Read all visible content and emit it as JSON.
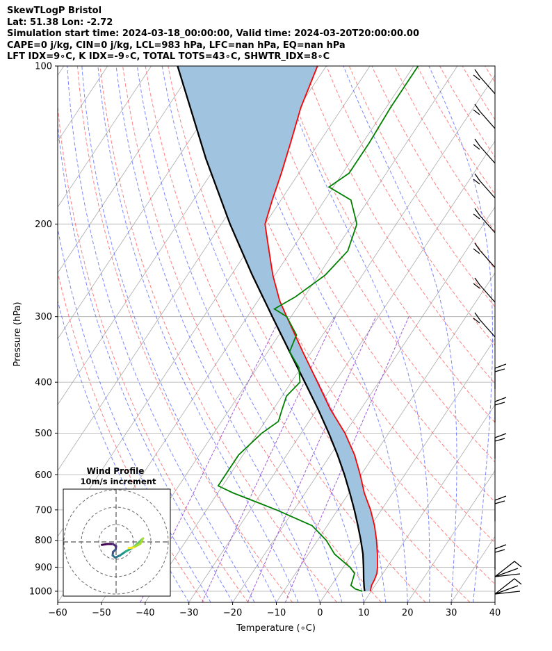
{
  "header": {
    "line1": "SkewTLogP Bristol",
    "line2": "Lat: 51.38   Lon: -2.72",
    "line3": "Simulation start time: 2024-03-18_00:00:00, Valid time: 2024-03-20T20:00:00.00",
    "line4": "CAPE=0 j/kg, CIN=0 j/kg, LCL=983 hPa, LFC=nan hPa, EQ=nan hPa",
    "line5": "LFT IDX=9∘C, K IDX=-9∘C, TOTAL TOTS=43∘C, SHWTR_IDX=8∘C"
  },
  "colors": {
    "temperature": "#ff0000",
    "dewpoint": "#008000",
    "parcel": "#000000",
    "cape_fill": "#a0c4e0",
    "dry_adiabat": "#ff5555",
    "moist_adiabat": "#4455ff",
    "mixing_ratio": "#8833cc",
    "isotherm": "#aaaaaa"
  },
  "chart_data": {
    "type": "line",
    "subtype": "skew-t log-p",
    "xlabel": "Temperature (∘C)",
    "ylabel": "Pressure (hPa)",
    "xlim": [
      -60,
      40
    ],
    "ylim": [
      1050,
      100
    ],
    "yscale": "log",
    "grid": true,
    "x_ticks": [
      "−60",
      "−50",
      "−40",
      "−30",
      "−20",
      "−10",
      "0",
      "10",
      "20",
      "30",
      "40"
    ],
    "x_tick_values": [
      -60,
      -50,
      -40,
      -30,
      -20,
      -10,
      0,
      10,
      20,
      30,
      40
    ],
    "y_ticks": [
      "100",
      "200",
      "300",
      "400",
      "500",
      "600",
      "700",
      "800",
      "900",
      "1000"
    ],
    "y_tick_values": [
      100,
      200,
      300,
      400,
      500,
      600,
      700,
      800,
      900,
      1000
    ],
    "series": [
      {
        "key": "temperature",
        "pressure": [
          1000,
          975,
          950,
          925,
          900,
          850,
          800,
          750,
          700,
          650,
          600,
          550,
          500,
          450,
          400,
          350,
          300,
          280,
          250,
          225,
          200,
          180,
          160,
          140,
          120,
          100
        ],
        "temp": [
          9.8,
          9.2,
          9.0,
          8.6,
          7.8,
          5.8,
          3.5,
          0.8,
          -2.5,
          -6.5,
          -10.2,
          -14.5,
          -20.0,
          -27.0,
          -34.0,
          -42.0,
          -51.0,
          -55.0,
          -60.5,
          -65.0,
          -70.0,
          -72.0,
          -74.0,
          -76.5,
          -79.5,
          -82.0
        ]
      },
      {
        "key": "dewpoint",
        "pressure": [
          1000,
          990,
          975,
          950,
          925,
          900,
          850,
          800,
          750,
          700,
          650,
          630,
          600,
          550,
          500,
          475,
          450,
          425,
          400,
          375,
          350,
          325,
          300,
          290,
          275,
          250,
          225,
          200,
          180,
          170,
          160,
          140,
          120,
          100
        ],
        "temp": [
          8.0,
          6.0,
          4.5,
          4.0,
          3.5,
          1.5,
          -4.0,
          -8.0,
          -13.5,
          -24.0,
          -36.5,
          -41.0,
          -41.0,
          -41.0,
          -39.0,
          -37.0,
          -38.0,
          -39.0,
          -38.0,
          -40.5,
          -45.0,
          -46.0,
          -51.0,
          -55.0,
          -52.0,
          -48.5,
          -47.0,
          -49.0,
          -54.0,
          -61.0,
          -58.5,
          -58.5,
          -59.0,
          -59.0
        ]
      },
      {
        "key": "parcel",
        "pressure": [
          1000,
          983,
          950,
          900,
          850,
          800,
          750,
          700,
          650,
          600,
          550,
          500,
          450,
          400,
          350,
          300,
          250,
          200,
          150,
          100
        ],
        "temp": [
          8.5,
          7.8,
          6.5,
          4.6,
          2.5,
          -0.1,
          -3.0,
          -6.2,
          -9.8,
          -13.8,
          -18.4,
          -23.7,
          -29.8,
          -36.9,
          -45.0,
          -54.3,
          -65.2,
          -78.0,
          -93.5,
          -114.0
        ]
      }
    ],
    "shaded_region": "between parcel and temperature",
    "hodograph": {
      "title": "Wind Profile",
      "subtitle": "10m/s increment",
      "rings": 3,
      "trace": [
        [
          -0.82,
          -0.17
        ],
        [
          -0.5,
          -0.12
        ],
        [
          -0.18,
          -0.12
        ],
        [
          0.0,
          -0.25
        ],
        [
          -0.02,
          -0.43
        ],
        [
          -0.18,
          -0.58
        ],
        [
          -0.2,
          -0.78
        ],
        [
          -0.05,
          -0.9
        ],
        [
          0.22,
          -0.78
        ],
        [
          0.55,
          -0.55
        ],
        [
          0.8,
          -0.42
        ],
        [
          1.05,
          -0.25
        ],
        [
          1.28,
          -0.05
        ],
        [
          1.55,
          0.2
        ],
        [
          1.4,
          -0.1
        ],
        [
          1.0,
          -0.32
        ],
        [
          0.72,
          -0.35
        ]
      ]
    }
  }
}
